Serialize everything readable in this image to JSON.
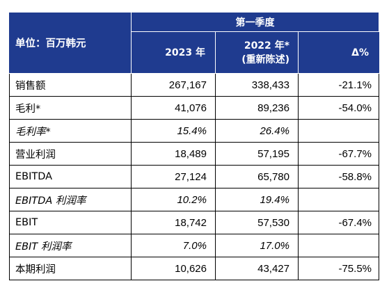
{
  "header": {
    "unit_label": "单位：百万韩元",
    "period_label": "第一季度",
    "col_2023": "2023 年",
    "col_2022_line1": "2022 年*",
    "col_2022_line2": "(重新陈述)",
    "col_delta": "Δ%"
  },
  "rows": [
    {
      "label": "销售额",
      "v2023": "267,167",
      "v2022": "338,433",
      "delta": "-21.1%",
      "italic": false
    },
    {
      "label": "毛利*",
      "v2023": "41,076",
      "v2022": "89,236",
      "delta": "-54.0%",
      "italic": false
    },
    {
      "label": "毛利率*",
      "v2023": "15.4%",
      "v2022": "26.4%",
      "delta": "",
      "italic": true
    },
    {
      "label": "营业利润",
      "v2023": "18,489",
      "v2022": "57,195",
      "delta": "-67.7%",
      "italic": false
    },
    {
      "label": "EBITDA",
      "v2023": "27,124",
      "v2022": "65,780",
      "delta": "-58.8%",
      "italic": false
    },
    {
      "label": "EBITDA 利润率",
      "v2023": "10.2%",
      "v2022": "19.4%",
      "delta": "",
      "italic": true
    },
    {
      "label": "EBIT",
      "v2023": "18,742",
      "v2022": "57,530",
      "delta": "-67.4%",
      "italic": false
    },
    {
      "label": "EBIT 利润率",
      "v2023": "7.0%",
      "v2022": "17.0%",
      "delta": "",
      "italic": true
    },
    {
      "label": "本期利润",
      "v2023": "10,626",
      "v2022": "43,427",
      "delta": "-75.5%",
      "italic": false
    }
  ]
}
